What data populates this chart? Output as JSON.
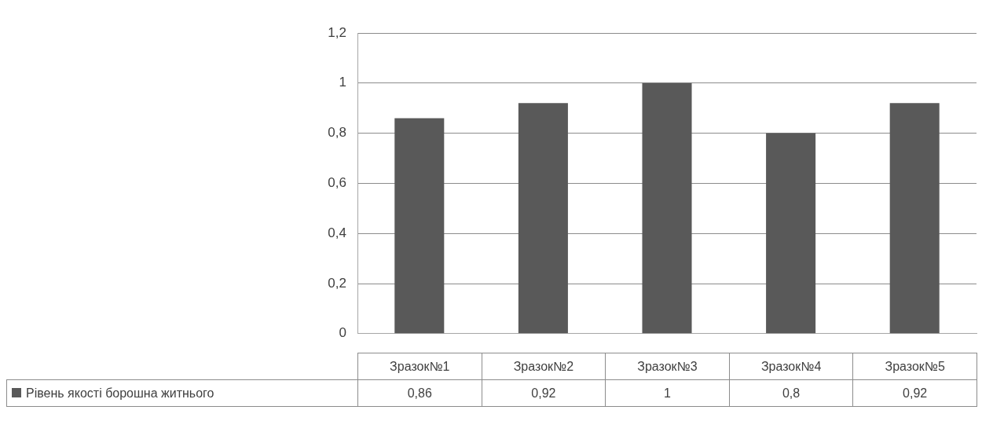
{
  "chart_data": {
    "type": "bar",
    "categories": [
      "Зразок№1",
      "Зразок№2",
      "Зразок№3",
      "Зразок№4",
      "Зразок№5"
    ],
    "series": [
      {
        "name": "Рівень якості борошна житнього",
        "color": "#595959",
        "values": [
          0.86,
          0.92,
          1,
          0.8,
          0.92
        ]
      }
    ],
    "ylim": [
      0,
      1.2
    ],
    "yticks": [
      {
        "value": 0,
        "label": "0"
      },
      {
        "value": 0.2,
        "label": "0,2"
      },
      {
        "value": 0.4,
        "label": "0,4"
      },
      {
        "value": 0.6,
        "label": "0,6"
      },
      {
        "value": 0.8,
        "label": "0,8"
      },
      {
        "value": 1,
        "label": "1"
      },
      {
        "value": 1.2,
        "label": "1,2"
      }
    ],
    "value_labels": [
      "0,86",
      "0,92",
      "1",
      "0,8",
      "0,92"
    ],
    "grid": "y",
    "legend": "bottom"
  }
}
